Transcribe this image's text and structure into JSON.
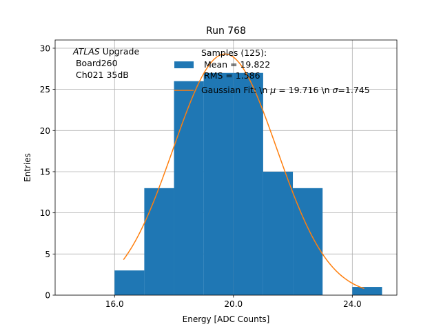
{
  "chart_data": {
    "type": "bar",
    "title": "Run 768",
    "xlabel": "Energy [ADC Counts]",
    "ylabel": "Entries",
    "xlim": [
      14,
      25.5
    ],
    "ylim": [
      0,
      31
    ],
    "x_ticks": [
      16,
      20,
      24
    ],
    "x_tick_labels": [
      "16.0",
      "20.0",
      "24.0"
    ],
    "y_ticks": [
      0,
      5,
      10,
      15,
      20,
      25,
      30
    ],
    "y_tick_labels": [
      "0",
      "5",
      "10",
      "15",
      "20",
      "25",
      "30"
    ],
    "grid": true,
    "histogram": {
      "name": "Samples (125):",
      "bin_edges": [
        16,
        17,
        18,
        19,
        20,
        21,
        22,
        23,
        24,
        25
      ],
      "counts": [
        3,
        13,
        26,
        27,
        27,
        15,
        13,
        0,
        1
      ],
      "color": "#1f77b4"
    },
    "gaussian_fit": {
      "mu": 19.716,
      "sigma": 1.745,
      "amplitude": 29.3,
      "x_range": [
        16.3,
        24.4
      ],
      "color": "#ff7f0e"
    },
    "annotation": {
      "italic": "ATLAS",
      "line1_rest": " Upgrade",
      "line2": " Board260",
      "line3": " Ch021 35dB"
    },
    "legend": {
      "location": "top-center",
      "hist_label_line1": "Samples (125):",
      "hist_label_line2": " Mean = 19.822",
      "hist_label_line3": " RMS = 1.586",
      "fit_label_prefix": "Gaussian Fit: \\n ",
      "fit_label_mu": "μ",
      "fit_label_mid": " = 19.716 \\n ",
      "fit_label_sigma": "σ",
      "fit_label_end": "=1.745"
    }
  }
}
